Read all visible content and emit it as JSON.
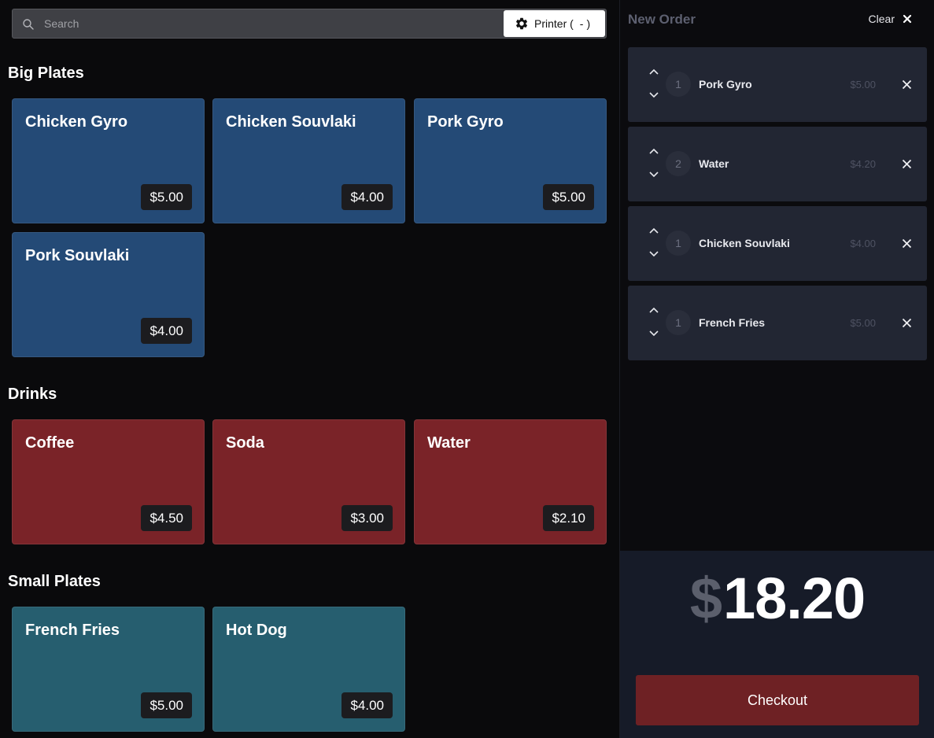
{
  "search": {
    "placeholder": "Search",
    "value": ""
  },
  "printer": {
    "label": "Printer (",
    "status": "-",
    "close": ")"
  },
  "sections": {
    "big_plates": {
      "title": "Big Plates",
      "items": [
        {
          "name": "Chicken Gyro",
          "price": "$5.00"
        },
        {
          "name": "Chicken Souvlaki",
          "price": "$4.00"
        },
        {
          "name": "Pork Gyro",
          "price": "$5.00"
        },
        {
          "name": "Pork Souvlaki",
          "price": "$4.00"
        }
      ]
    },
    "drinks": {
      "title": "Drinks",
      "items": [
        {
          "name": "Coffee",
          "price": "$4.50"
        },
        {
          "name": "Soda",
          "price": "$3.00"
        },
        {
          "name": "Water",
          "price": "$2.10"
        }
      ]
    },
    "small_plates": {
      "title": "Small Plates",
      "items": [
        {
          "name": "French Fries",
          "price": "$5.00"
        },
        {
          "name": "Hot Dog",
          "price": "$4.00"
        }
      ]
    }
  },
  "order": {
    "title": "New Order",
    "clear_label": "Clear",
    "lines": [
      {
        "qty": "1",
        "name": "Pork Gyro",
        "price": "$5.00"
      },
      {
        "qty": "2",
        "name": "Water",
        "price": "$4.20"
      },
      {
        "qty": "1",
        "name": "Chicken Souvlaki",
        "price": "$4.00"
      },
      {
        "qty": "1",
        "name": "French Fries",
        "price": "$5.00"
      }
    ],
    "currency": "$",
    "total": "18.20",
    "checkout_label": "Checkout"
  },
  "colors": {
    "big_plates": "#244a76",
    "drinks": "#7a2328",
    "small_plates": "#265e6f",
    "checkout": "#6e2124"
  },
  "icons": {
    "search": "search-icon",
    "printer_settings": "gear-icon",
    "clear": "close-icon",
    "increase": "chevron-up-icon",
    "decrease": "chevron-down-icon",
    "remove": "close-icon"
  }
}
